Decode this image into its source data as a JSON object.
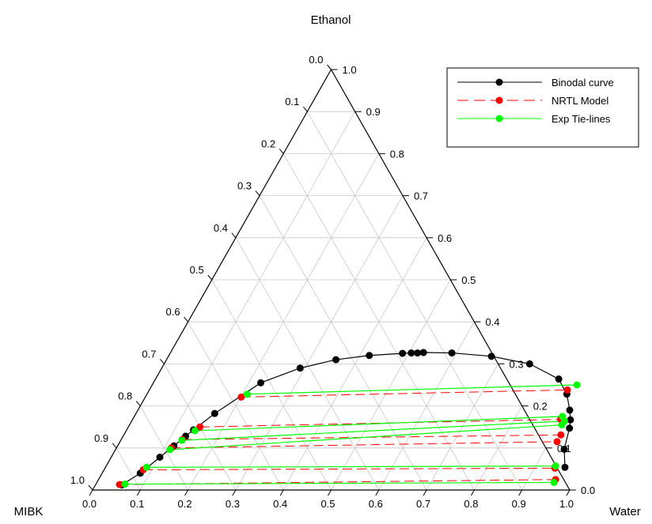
{
  "chart_data": {
    "type": "ternary",
    "title": "",
    "axes": {
      "top": "Ethanol",
      "left": "MIBK",
      "right": "Water"
    },
    "tick_labels": [
      "0.0",
      "0.1",
      "0.2",
      "0.3",
      "0.4",
      "0.5",
      "0.6",
      "0.7",
      "0.8",
      "0.9",
      "1.0"
    ],
    "grid": true,
    "legend_position": "top-right",
    "legend": [
      {
        "label": "Binodal curve",
        "color": "#000000",
        "line": "solid",
        "marker": "circle"
      },
      {
        "label": "NRTL Model",
        "color": "#ff0000",
        "line": "dashed",
        "marker": "circle"
      },
      {
        "label": "Exp Tie-lines",
        "color": "#00ff00",
        "line": "solid",
        "marker": "circle"
      }
    ],
    "coordinates": "water = fraction along bottom axis, ethanol = vertical fraction",
    "series": [
      {
        "name": "Binodal curve",
        "color": "#000000",
        "points": [
          {
            "water": 0.055,
            "ethanol": 0.012
          },
          {
            "water": 0.08,
            "ethanol": 0.04
          },
          {
            "water": 0.102,
            "ethanol": 0.078
          },
          {
            "water": 0.118,
            "ethanol": 0.105
          },
          {
            "water": 0.131,
            "ethanol": 0.128
          },
          {
            "water": 0.14,
            "ethanol": 0.143
          },
          {
            "water": 0.165,
            "ethanol": 0.182
          },
          {
            "water": 0.225,
            "ethanol": 0.255
          },
          {
            "water": 0.29,
            "ethanol": 0.29
          },
          {
            "water": 0.355,
            "ethanol": 0.31
          },
          {
            "water": 0.42,
            "ethanol": 0.32
          },
          {
            "water": 0.487,
            "ethanol": 0.325
          },
          {
            "water": 0.505,
            "ethanol": 0.326
          },
          {
            "water": 0.518,
            "ethanol": 0.326
          },
          {
            "water": 0.53,
            "ethanol": 0.327
          },
          {
            "water": 0.59,
            "ethanol": 0.326
          },
          {
            "water": 0.677,
            "ethanol": 0.318
          },
          {
            "water": 0.766,
            "ethanol": 0.3
          },
          {
            "water": 0.845,
            "ethanol": 0.264
          },
          {
            "water": 0.88,
            "ethanol": 0.228
          },
          {
            "water": 0.905,
            "ethanol": 0.19
          },
          {
            "water": 0.918,
            "ethanol": 0.167
          },
          {
            "water": 0.926,
            "ethanol": 0.147
          },
          {
            "water": 0.94,
            "ethanol": 0.097
          },
          {
            "water": 0.963,
            "ethanol": 0.054
          }
        ]
      },
      {
        "name": "NRTL Model",
        "color": "#ff0000",
        "tie_lines": [
          [
            {
              "water": 0.05,
              "ethanol": 0.013
            },
            {
              "water": 0.958,
              "ethanol": 0.025
            }
          ],
          [
            {
              "water": 0.082,
              "ethanol": 0.048
            },
            {
              "water": 0.943,
              "ethanol": 0.052
            }
          ],
          [
            {
              "water": 0.115,
              "ethanol": 0.1
            },
            {
              "water": 0.916,
              "ethanol": 0.115
            }
          ],
          [
            {
              "water": 0.128,
              "ethanol": 0.12
            },
            {
              "water": 0.916,
              "ethanol": 0.131
            }
          ],
          [
            {
              "water": 0.15,
              "ethanol": 0.15
            },
            {
              "water": 0.897,
              "ethanol": 0.168
            }
          ],
          [
            {
              "water": 0.201,
              "ethanol": 0.221
            },
            {
              "water": 0.876,
              "ethanol": 0.238
            }
          ]
        ]
      },
      {
        "name": "Exp Tie-lines",
        "color": "#00ff00",
        "tie_lines": [
          [
            {
              "water": 0.061,
              "ethanol": 0.014
            },
            {
              "water": 0.958,
              "ethanol": 0.018
            }
          ],
          [
            {
              "water": 0.086,
              "ethanol": 0.054
            },
            {
              "water": 0.942,
              "ethanol": 0.057
            }
          ],
          [
            {
              "water": 0.114,
              "ethanol": 0.096
            },
            {
              "water": 0.906,
              "ethanol": 0.155
            }
          ],
          [
            {
              "water": 0.128,
              "ethanol": 0.118
            },
            {
              "water": 0.907,
              "ethanol": 0.164
            }
          ],
          [
            {
              "water": 0.144,
              "ethanol": 0.141
            },
            {
              "water": 0.897,
              "ethanol": 0.175
            }
          ],
          [
            {
              "water": 0.21,
              "ethanol": 0.228
            },
            {
              "water": 0.89,
              "ethanol": 0.25
            }
          ]
        ]
      }
    ]
  }
}
